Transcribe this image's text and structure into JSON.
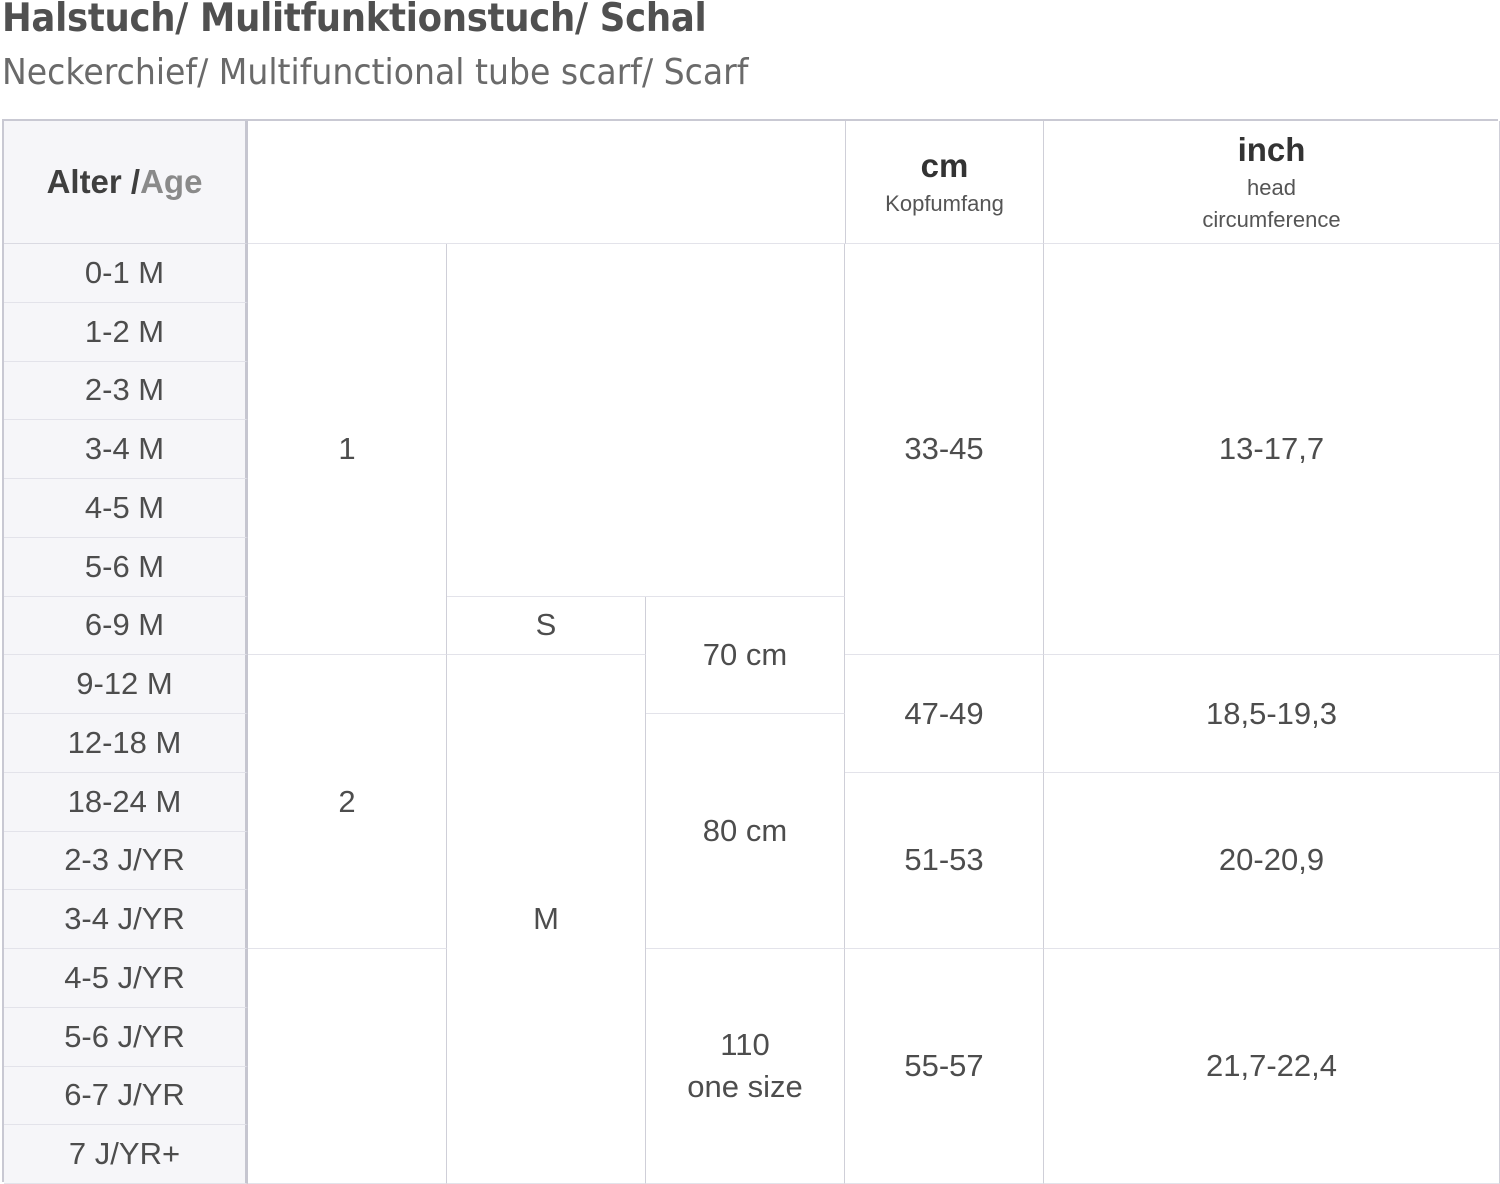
{
  "title": "Halstuch/ Mulitfunktionstuch/ Schal",
  "subtitle": "Neckerchief/ Multifunctional tube scarf/ Scarf",
  "header": {
    "age_label_de": "Alter",
    "age_separator": " /",
    "age_label_en": "Age",
    "cm_label": "cm",
    "cm_sub": "Kopfumfang",
    "inch_label": "inch",
    "inch_sub_1": "head",
    "inch_sub_2": "circumference"
  },
  "ages": [
    "0-1 M",
    "1-2 M",
    "2-3 M",
    "3-4 M",
    "4-5 M",
    "5-6 M",
    "6-9 M",
    "9-12 M",
    "12-18 M",
    "18-24 M",
    "2-3 J/YR",
    "3-4 J/YR",
    "4-5 J/YR",
    "5-6 J/YR",
    "6-7 J/YR",
    "7 J/YR+"
  ],
  "groups": {
    "group_1": "1",
    "group_2": "2",
    "size_s": "S",
    "size_m": "M",
    "len_70": "70 cm",
    "len_80": "80 cm",
    "len_110_a": "110",
    "len_110_b": "one size"
  },
  "measurements": {
    "cm_1": "33-45",
    "inch_1": "13-17,7",
    "cm_2": "47-49",
    "inch_2": "18,5-19,3",
    "cm_3": "51-53",
    "inch_3": "20-20,9",
    "cm_4": "55-57",
    "inch_4": "21,7-22,4"
  }
}
